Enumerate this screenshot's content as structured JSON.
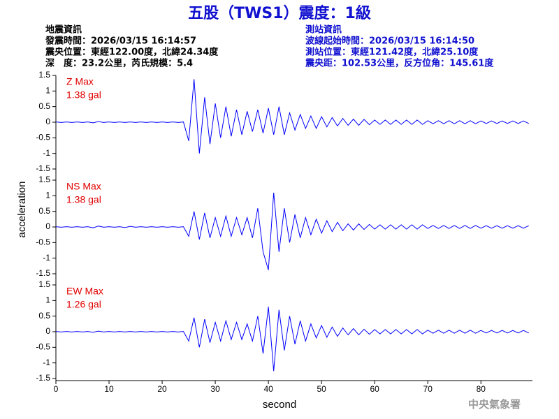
{
  "header": {
    "title": "五股（TWS1）震度：1級",
    "left": [
      "地震資訊",
      "發震時間：2026/03/15 16:14:57",
      "震央位置：東經122.00度，北緯24.34度",
      "深　度：23.2公里，芮氏規模：5.4"
    ],
    "right": [
      "測站資訊",
      "波線起始時間：2026/03/15 16:14:50",
      "測站位置：東經121.42度，北緯25.10度",
      "震央距：102.53公里，反方位角：145.61度"
    ]
  },
  "footer": "中央氣象署",
  "chart_data": {
    "type": "line",
    "xlabel": "second",
    "ylabel": "acceleration",
    "xlim": [
      0,
      89.7
    ],
    "xticks": [
      0,
      10,
      20,
      30,
      40,
      50,
      60,
      70,
      80
    ],
    "ylim": [
      -1.5,
      1.5
    ],
    "yticks": [
      -1.5,
      -1,
      -0.5,
      0,
      0.5,
      1,
      1.5
    ],
    "x": [
      0,
      1,
      2,
      3,
      4,
      5,
      6,
      7,
      8,
      9,
      10,
      11,
      12,
      13,
      14,
      15,
      16,
      17,
      18,
      19,
      20,
      21,
      22,
      23,
      24,
      25,
      26,
      27,
      28,
      29,
      30,
      31,
      32,
      33,
      34,
      35,
      36,
      37,
      38,
      39,
      40,
      41,
      42,
      43,
      44,
      45,
      46,
      47,
      48,
      49,
      50,
      51,
      52,
      53,
      54,
      55,
      56,
      57,
      58,
      59,
      60,
      61,
      62,
      63,
      64,
      65,
      66,
      67,
      68,
      69,
      70,
      71,
      72,
      73,
      74,
      75,
      76,
      77,
      78,
      79,
      80,
      81,
      82,
      83,
      84,
      85,
      86,
      87,
      88,
      89
    ],
    "series": [
      {
        "name": "Z Max",
        "annotation": "1.38 gal",
        "color": "#0000ff",
        "values": [
          0.01,
          -0.01,
          0.01,
          -0.01,
          0.01,
          -0.01,
          0.01,
          -0.02,
          0.02,
          -0.01,
          0.01,
          -0.01,
          0.01,
          -0.01,
          0.01,
          -0.01,
          0.01,
          -0.01,
          0.01,
          -0.01,
          0.01,
          -0.01,
          0.01,
          -0.01,
          0.01,
          -0.6,
          1.38,
          -1.0,
          0.8,
          -0.7,
          0.6,
          -0.5,
          0.5,
          -0.45,
          0.4,
          -0.4,
          0.35,
          -0.3,
          0.4,
          -0.35,
          0.45,
          -0.4,
          0.5,
          -0.4,
          0.3,
          -0.25,
          0.25,
          -0.2,
          0.2,
          -0.2,
          0.18,
          -0.15,
          0.15,
          -0.12,
          0.12,
          -0.1,
          0.1,
          -0.1,
          0.09,
          -0.08,
          0.07,
          -0.07,
          0.07,
          -0.07,
          0.07,
          -0.07,
          0.07,
          -0.07,
          0.07,
          -0.07,
          0.05,
          -0.05,
          0.05,
          -0.05,
          0.05,
          -0.05,
          0.05,
          -0.05,
          0.05,
          -0.05,
          0.04,
          -0.04,
          0.04,
          -0.04,
          0.04,
          -0.04,
          0.04,
          -0.04,
          0.04,
          -0.04
        ]
      },
      {
        "name": "NS Max",
        "annotation": "1.38 gal",
        "color": "#0000ff",
        "values": [
          0.01,
          -0.01,
          0.01,
          -0.01,
          0.01,
          -0.01,
          0.01,
          -0.03,
          0.03,
          -0.01,
          0.01,
          -0.01,
          0.01,
          -0.02,
          0.02,
          -0.01,
          0.01,
          -0.01,
          0.01,
          -0.01,
          0.01,
          -0.01,
          0.01,
          -0.01,
          0.01,
          -0.3,
          0.5,
          -0.4,
          0.45,
          -0.35,
          0.3,
          -0.3,
          0.35,
          -0.3,
          0.3,
          -0.25,
          0.3,
          -0.35,
          0.6,
          -0.8,
          -1.38,
          1.1,
          -0.8,
          0.6,
          -0.5,
          0.4,
          -0.35,
          0.3,
          -0.25,
          0.25,
          -0.2,
          0.2,
          -0.15,
          0.15,
          -0.12,
          0.1,
          -0.1,
          0.1,
          -0.08,
          0.08,
          -0.07,
          0.07,
          -0.07,
          0.07,
          -0.07,
          0.07,
          -0.07,
          0.07,
          -0.07,
          0.07,
          -0.05,
          0.05,
          -0.05,
          0.05,
          -0.05,
          0.05,
          -0.05,
          0.05,
          -0.05,
          0.05,
          -0.04,
          0.04,
          -0.04,
          0.04,
          -0.04,
          0.04,
          -0.04,
          0.04,
          -0.04,
          0.04
        ]
      },
      {
        "name": "EW Max",
        "annotation": "1.26 gal",
        "color": "#0000ff",
        "values": [
          0.01,
          -0.01,
          0.01,
          -0.01,
          0.01,
          -0.01,
          0.01,
          -0.02,
          0.02,
          -0.01,
          0.01,
          -0.01,
          0.01,
          -0.01,
          0.01,
          -0.01,
          0.01,
          -0.01,
          0.01,
          -0.01,
          0.01,
          -0.01,
          0.01,
          -0.01,
          0.01,
          -0.3,
          0.45,
          -0.5,
          0.4,
          -0.35,
          0.3,
          -0.3,
          0.35,
          -0.25,
          0.3,
          -0.25,
          0.25,
          -0.3,
          0.5,
          -0.7,
          0.8,
          -1.26,
          0.7,
          -0.6,
          0.5,
          -0.4,
          0.35,
          -0.3,
          0.25,
          -0.2,
          0.2,
          -0.18,
          0.15,
          -0.15,
          0.12,
          -0.1,
          0.1,
          -0.1,
          0.08,
          -0.08,
          0.07,
          -0.07,
          0.07,
          -0.07,
          0.07,
          -0.07,
          0.07,
          -0.07,
          0.07,
          -0.07,
          0.05,
          -0.05,
          0.05,
          -0.05,
          0.05,
          -0.05,
          0.05,
          -0.05,
          0.05,
          -0.05,
          0.04,
          -0.04,
          0.04,
          -0.04,
          0.04,
          -0.04,
          0.04,
          -0.04,
          0.04,
          -0.04
        ]
      }
    ]
  }
}
